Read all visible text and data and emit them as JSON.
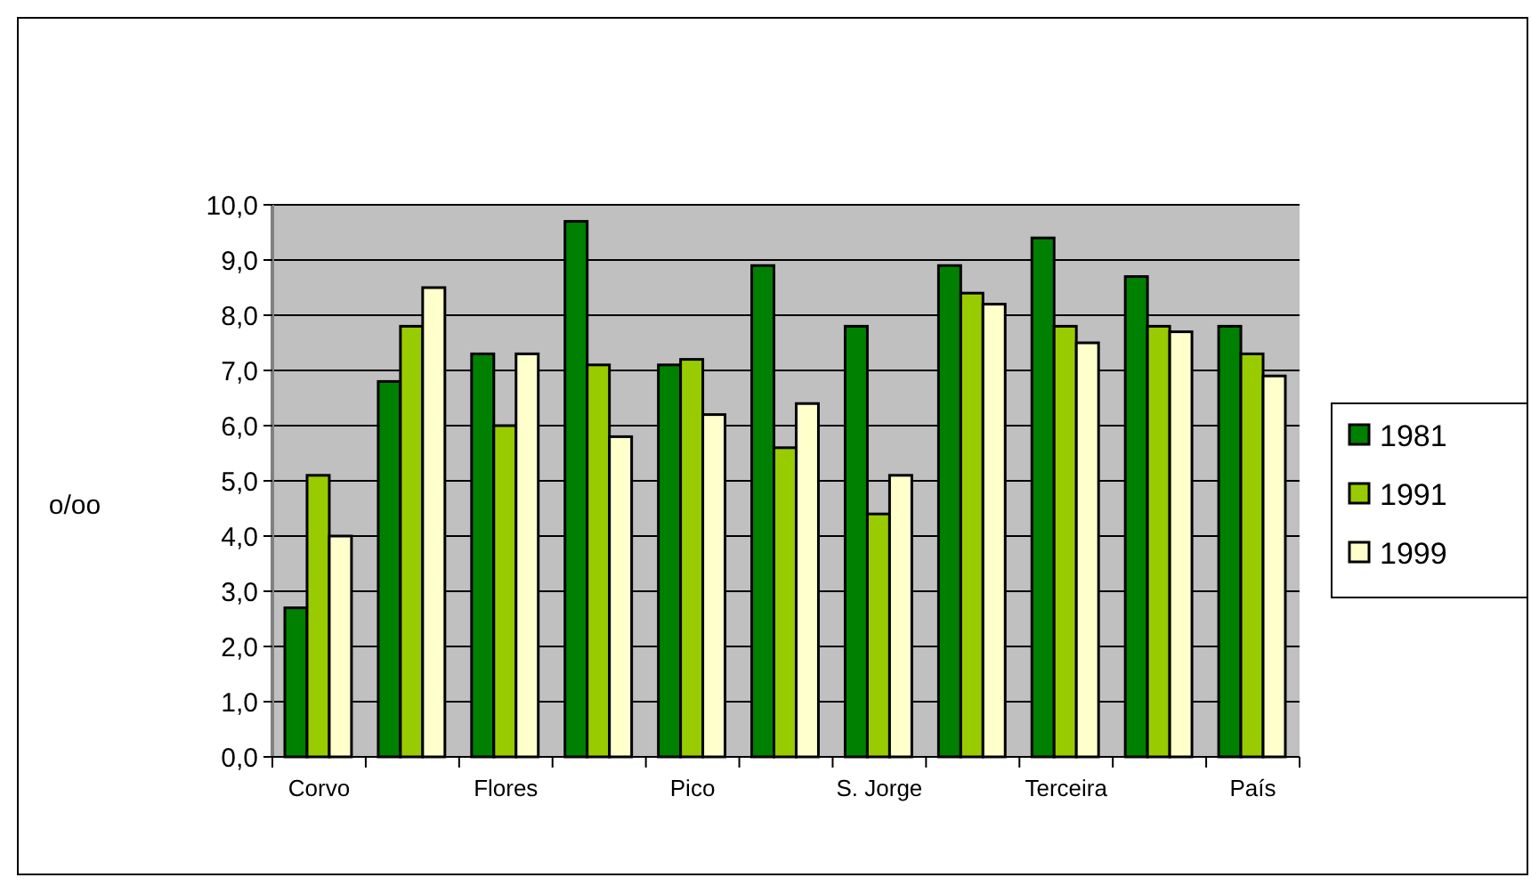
{
  "chart_data": {
    "type": "bar",
    "ylabel": "o/oo",
    "categories": [
      "Corvo",
      null,
      "Flores",
      null,
      "Pico",
      null,
      "S. Jorge",
      null,
      "Terceira",
      null,
      "País"
    ],
    "series": [
      {
        "name": "1981",
        "color": "#008000",
        "values": [
          2.7,
          6.8,
          7.3,
          9.7,
          7.1,
          8.9,
          7.8,
          8.9,
          9.4,
          8.7,
          7.8
        ]
      },
      {
        "name": "1991",
        "color": "#99cc00",
        "values": [
          5.1,
          7.8,
          6.0,
          7.1,
          7.2,
          5.6,
          4.4,
          8.4,
          7.8,
          7.8,
          7.3
        ]
      },
      {
        "name": "1999",
        "color": "#ffffcc",
        "values": [
          4.0,
          8.5,
          7.3,
          5.8,
          6.2,
          6.4,
          5.1,
          8.2,
          7.5,
          7.7,
          6.9
        ]
      }
    ],
    "ylim": [
      0,
      10
    ],
    "yticks": [
      {
        "value": 0,
        "label": "0,0"
      },
      {
        "value": 1,
        "label": "1,0"
      },
      {
        "value": 2,
        "label": "2,0"
      },
      {
        "value": 3,
        "label": "3,0"
      },
      {
        "value": 4,
        "label": "4,0"
      },
      {
        "value": 5,
        "label": "5,0"
      },
      {
        "value": 6,
        "label": "6,0"
      },
      {
        "value": 7,
        "label": "7,0"
      },
      {
        "value": 8,
        "label": "8,0"
      },
      {
        "value": 9,
        "label": "9,0"
      },
      {
        "value": 10,
        "label": "10,0"
      }
    ],
    "grid": "y",
    "legend": "right"
  }
}
